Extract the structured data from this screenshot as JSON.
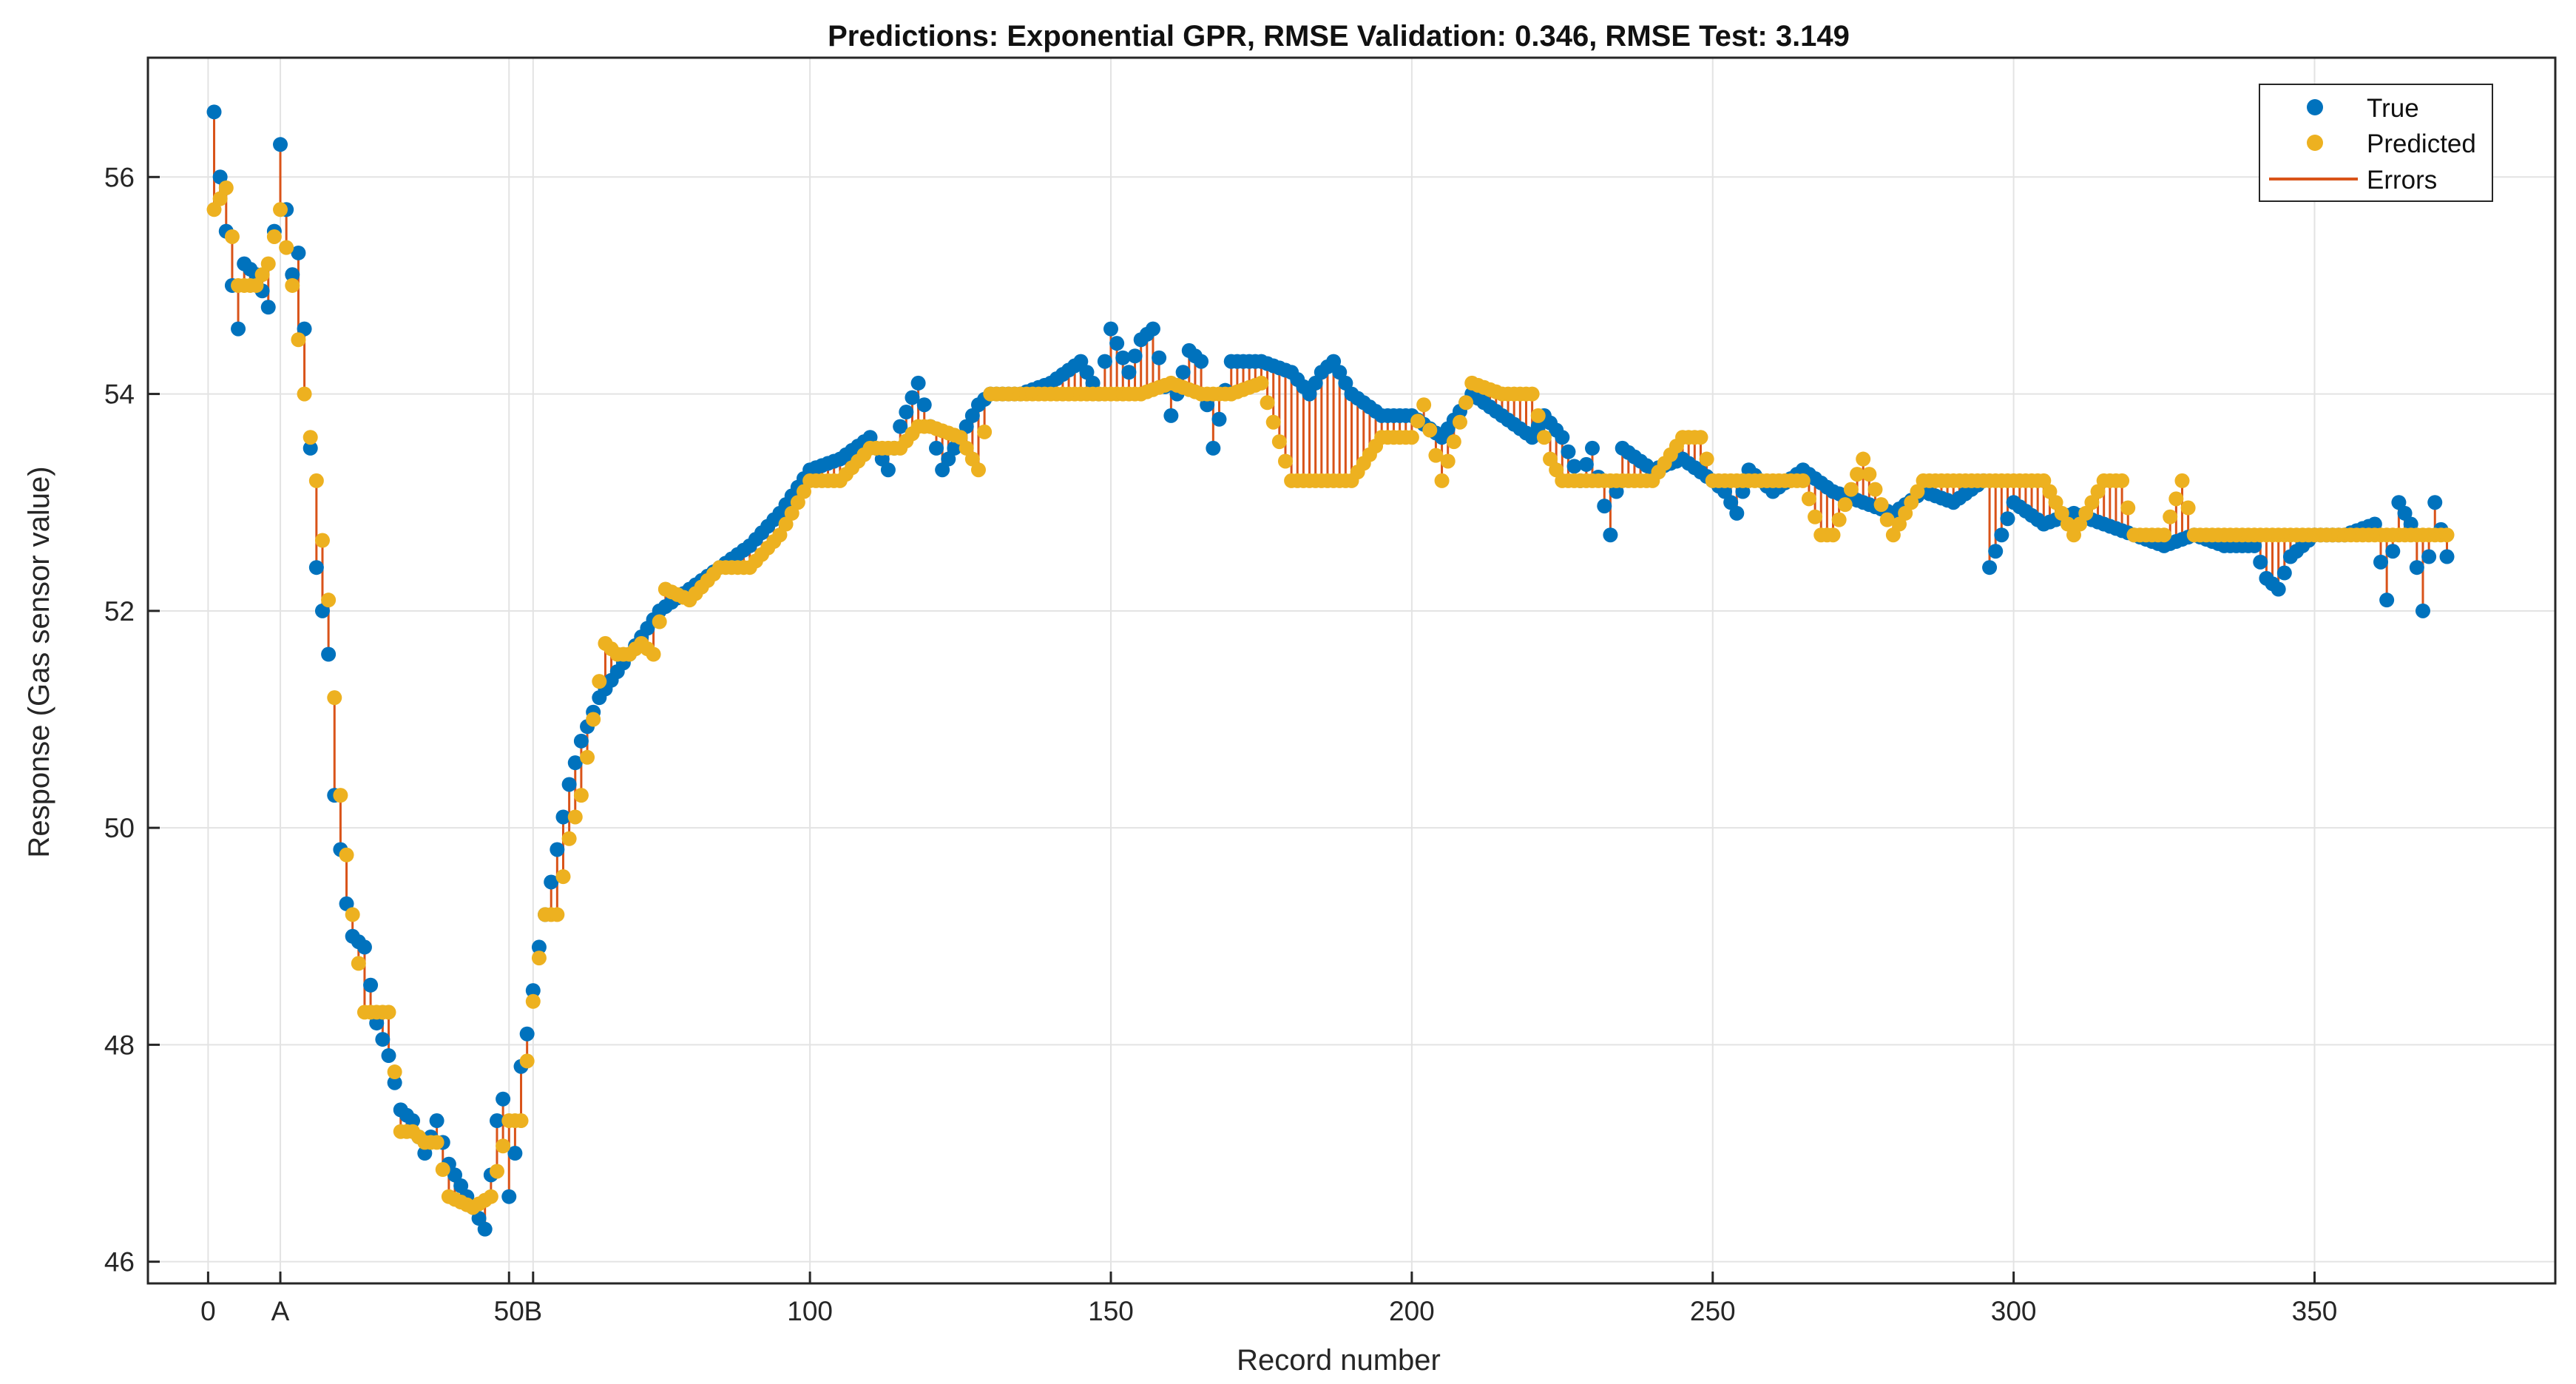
{
  "chart_data": {
    "type": "scatter",
    "title": "Predictions: Exponential GPR, RMSE Validation: 0.346, RMSE Test: 3.149",
    "xlabel": "Record number",
    "ylabel": "Response (Gas sensor value)",
    "xlim": [
      -10,
      390
    ],
    "ylim": [
      45.8,
      57.1
    ],
    "grid": true,
    "x_ticks": [
      {
        "value": 0,
        "label": "0"
      },
      {
        "value": 12,
        "label": "A"
      },
      {
        "value": 50,
        "label": "50"
      },
      {
        "value": 54,
        "label": "B"
      },
      {
        "value": 100,
        "label": "100"
      },
      {
        "value": 150,
        "label": "150"
      },
      {
        "value": 200,
        "label": "200"
      },
      {
        "value": 250,
        "label": "250"
      },
      {
        "value": 300,
        "label": "300"
      },
      {
        "value": 350,
        "label": "350"
      }
    ],
    "y_ticks": [
      {
        "value": 46,
        "label": "46"
      },
      {
        "value": 48,
        "label": "48"
      },
      {
        "value": 50,
        "label": "50"
      },
      {
        "value": 52,
        "label": "52"
      },
      {
        "value": 54,
        "label": "54"
      },
      {
        "value": 56,
        "label": "56"
      }
    ],
    "legend": {
      "position": "top-right",
      "entries": [
        {
          "label": "True",
          "kind": "marker",
          "color": "#0072BD"
        },
        {
          "label": "Predicted",
          "kind": "marker",
          "color": "#EDB120"
        },
        {
          "label": "Errors",
          "kind": "line",
          "color": "#D95319"
        }
      ]
    },
    "series": [
      {
        "name": "True",
        "color": "#0072BD",
        "key_points": {
          "x": [
            1,
            2,
            3,
            4,
            5,
            6,
            8,
            10,
            11,
            12,
            13,
            14,
            15,
            16,
            17,
            18,
            19,
            20,
            21,
            22,
            23,
            24,
            26,
            28,
            30,
            32,
            34,
            36,
            38,
            40,
            42,
            44,
            45,
            46,
            47,
            48,
            49,
            50,
            51,
            52,
            53,
            54,
            55,
            56,
            58,
            60,
            62,
            65,
            70,
            75,
            80,
            85,
            90,
            95,
            100,
            105,
            110,
            113,
            115,
            118,
            120,
            122,
            125,
            128,
            130,
            135,
            140,
            145,
            148,
            150,
            153,
            155,
            157,
            160,
            163,
            165,
            167,
            170,
            175,
            180,
            183,
            185,
            187,
            190,
            195,
            200,
            205,
            210,
            215,
            220,
            222,
            225,
            228,
            230,
            233,
            235,
            240,
            245,
            250,
            252,
            254,
            256,
            260,
            265,
            270,
            275,
            280,
            285,
            290,
            295,
            296,
            300,
            305,
            310,
            315,
            320,
            325,
            330,
            335,
            340,
            342,
            344,
            346,
            350,
            355,
            360,
            362,
            364,
            366,
            368,
            370,
            372
          ],
          "y": [
            56.6,
            56.0,
            55.5,
            55.0,
            54.6,
            55.2,
            55.1,
            54.8,
            55.5,
            56.3,
            55.7,
            55.1,
            55.3,
            54.6,
            53.5,
            52.4,
            52.0,
            51.6,
            50.3,
            49.8,
            49.3,
            49.0,
            48.9,
            48.2,
            47.9,
            47.4,
            47.3,
            47.0,
            47.3,
            46.9,
            46.7,
            46.5,
            46.4,
            46.3,
            46.8,
            47.3,
            47.5,
            46.6,
            47.0,
            47.8,
            48.1,
            48.5,
            48.9,
            49.2,
            49.8,
            50.4,
            50.8,
            51.2,
            51.6,
            52.0,
            52.2,
            52.4,
            52.6,
            52.9,
            53.3,
            53.4,
            53.6,
            53.3,
            53.7,
            54.1,
            53.7,
            53.3,
            53.6,
            53.9,
            54.0,
            54.0,
            54.1,
            54.3,
            54.0,
            54.6,
            54.2,
            54.5,
            54.6,
            53.8,
            54.4,
            54.3,
            53.5,
            54.3,
            54.3,
            54.2,
            54.0,
            54.2,
            54.3,
            54.0,
            53.8,
            53.8,
            53.6,
            54.0,
            53.8,
            53.6,
            53.8,
            53.6,
            53.2,
            53.5,
            52.7,
            53.5,
            53.3,
            53.4,
            53.2,
            53.1,
            52.9,
            53.3,
            53.1,
            53.3,
            53.1,
            53.0,
            52.9,
            53.1,
            53.0,
            53.2,
            52.4,
            53.0,
            52.8,
            52.9,
            52.8,
            52.7,
            52.6,
            52.7,
            52.6,
            52.6,
            52.3,
            52.2,
            52.5,
            52.7,
            52.7,
            52.8,
            52.1,
            53.0,
            52.8,
            52.0,
            53.0,
            52.5
          ]
        }
      },
      {
        "name": "Predicted",
        "color": "#EDB120",
        "key_points": {
          "x": [
            1,
            3,
            5,
            8,
            10,
            12,
            14,
            16,
            18,
            20,
            22,
            24,
            26,
            28,
            30,
            32,
            34,
            36,
            38,
            40,
            44,
            47,
            50,
            52,
            54,
            56,
            58,
            60,
            62,
            64,
            66,
            68,
            70,
            72,
            74,
            76,
            80,
            85,
            90,
            95,
            100,
            105,
            110,
            115,
            118,
            120,
            125,
            128,
            130,
            135,
            140,
            145,
            150,
            155,
            160,
            165,
            170,
            175,
            180,
            185,
            190,
            195,
            200,
            202,
            205,
            210,
            215,
            220,
            223,
            225,
            230,
            235,
            240,
            245,
            248,
            250,
            255,
            260,
            265,
            268,
            270,
            275,
            280,
            285,
            290,
            295,
            300,
            305,
            310,
            315,
            318,
            320,
            325,
            328,
            330,
            335,
            340,
            345,
            350,
            355,
            360,
            365,
            370,
            372
          ],
          "y": [
            55.7,
            55.9,
            55.0,
            55.0,
            55.2,
            55.7,
            55.0,
            54.0,
            53.2,
            52.1,
            50.3,
            49.2,
            48.3,
            48.3,
            48.3,
            47.2,
            47.2,
            47.1,
            47.1,
            46.6,
            46.5,
            46.6,
            47.3,
            47.3,
            48.4,
            49.2,
            49.2,
            49.9,
            50.3,
            51.0,
            51.7,
            51.6,
            51.6,
            51.7,
            51.6,
            52.2,
            52.1,
            52.4,
            52.4,
            52.7,
            53.2,
            53.2,
            53.5,
            53.5,
            53.7,
            53.7,
            53.6,
            53.3,
            54.0,
            54.0,
            54.0,
            54.0,
            54.0,
            54.0,
            54.1,
            54.0,
            54.0,
            54.1,
            53.2,
            53.2,
            53.2,
            53.6,
            53.6,
            53.9,
            53.2,
            54.1,
            54.0,
            54.0,
            53.4,
            53.2,
            53.2,
            53.2,
            53.2,
            53.6,
            53.6,
            53.2,
            53.2,
            53.2,
            53.2,
            52.7,
            52.7,
            53.4,
            52.7,
            53.2,
            53.2,
            53.2,
            53.2,
            53.2,
            52.7,
            53.2,
            53.2,
            52.7,
            52.7,
            53.2,
            52.7,
            52.7,
            52.7,
            52.7,
            52.7,
            52.7,
            52.7,
            52.7,
            52.7,
            52.7
          ]
        }
      }
    ]
  }
}
